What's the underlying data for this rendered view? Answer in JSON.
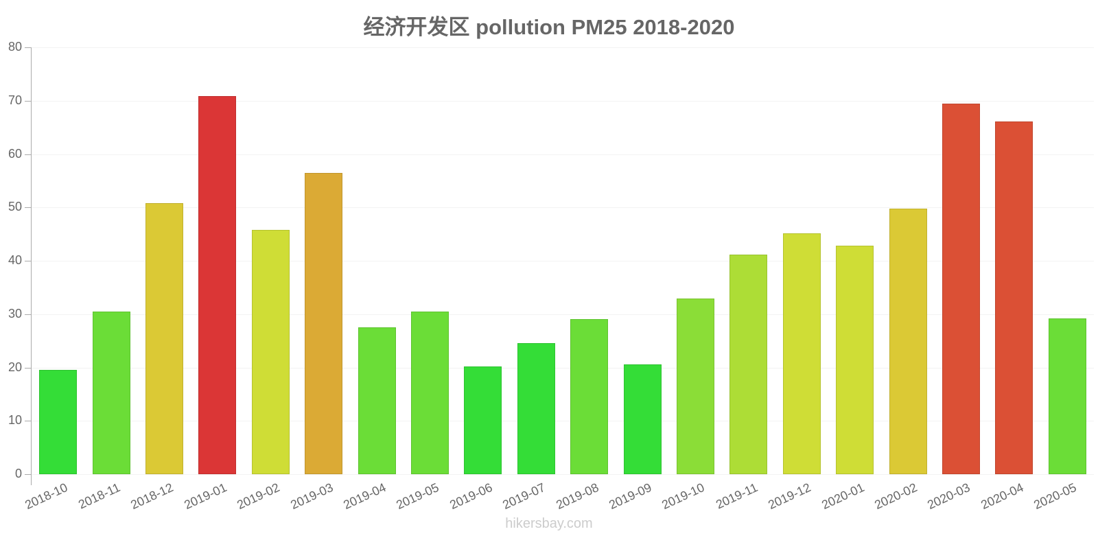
{
  "title": "经济开发区 pollution PM25 2018-2020",
  "watermark": "hikersbay.com",
  "y_ticks": [
    "0",
    "10",
    "20",
    "30",
    "40",
    "50",
    "60",
    "70",
    "80"
  ],
  "chart_data": {
    "type": "bar",
    "title": "经济开发区 pollution PM25 2018-2020",
    "xlabel": "",
    "ylabel": "",
    "ylim": [
      0,
      80
    ],
    "grid": true,
    "legend": "none",
    "categories": [
      "2018-10",
      "2018-11",
      "2018-12",
      "2019-01",
      "2019-02",
      "2019-03",
      "2019-04",
      "2019-05",
      "2019-06",
      "2019-07",
      "2019-08",
      "2019-09",
      "2019-10",
      "2019-11",
      "2019-12",
      "2020-01",
      "2020-02",
      "2020-03",
      "2020-04",
      "2020-05"
    ],
    "values": [
      19.5,
      30.5,
      50.8,
      70.9,
      45.8,
      56.5,
      27.5,
      30.5,
      20.2,
      24.6,
      29.1,
      20.6,
      32.9,
      41.2,
      45.1,
      42.8,
      49.8,
      69.5,
      66.1,
      29.2
    ],
    "colors": [
      "#34dd37",
      "#6bdd37",
      "#dbc935",
      "#db3636",
      "#cfdd36",
      "#dbaa35",
      "#6bdd37",
      "#6bdd37",
      "#34dd37",
      "#34dd37",
      "#6bdd37",
      "#34dd37",
      "#8bdd37",
      "#addd36",
      "#cfdd36",
      "#cfdd36",
      "#dbc935",
      "#db5035",
      "#db5035",
      "#6bdd37"
    ]
  }
}
